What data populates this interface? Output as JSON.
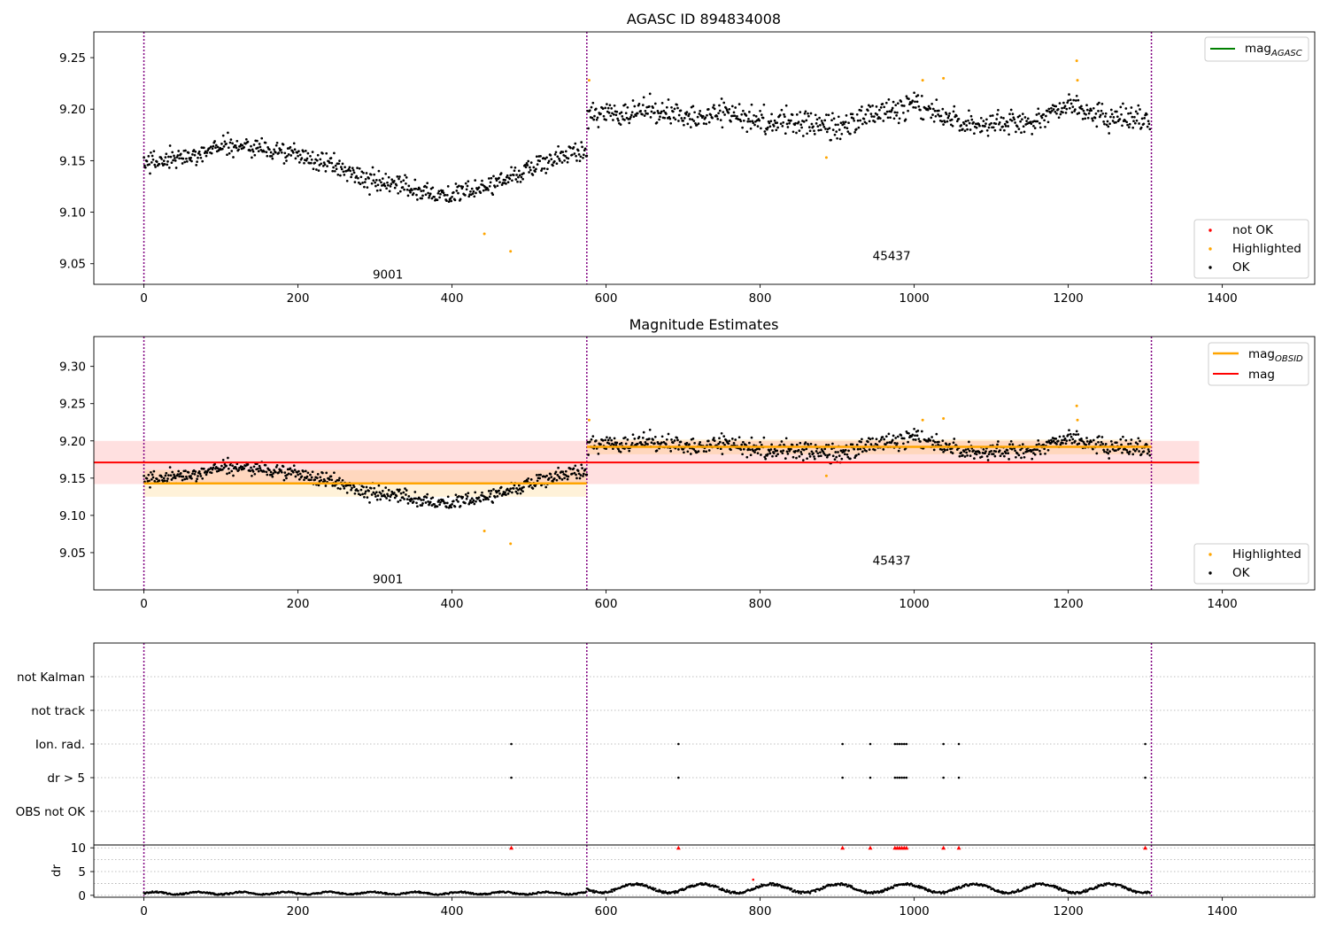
{
  "chart_data": [
    {
      "panel": "top",
      "type": "scatter",
      "title": "AGASC ID 894834008",
      "xlim": [
        -65,
        1520
      ],
      "ylim": [
        9.03,
        9.275
      ],
      "xticks": [
        0,
        200,
        400,
        600,
        800,
        1000,
        1200,
        1400
      ],
      "yticks": [
        9.05,
        9.1,
        9.15,
        9.2,
        9.25
      ],
      "obs_boundaries": [
        0,
        575,
        1308
      ],
      "obs_labels": [
        {
          "text": "9001",
          "x": 288,
          "y": 9.04
        },
        {
          "text": "45437",
          "x": 942,
          "y": 9.058
        }
      ],
      "legend_upper": [
        {
          "label": "mag",
          "subscript": "AGASC",
          "color": "#008000"
        }
      ],
      "legend_lower": [
        {
          "label": "not OK",
          "color": "#ff0000"
        },
        {
          "label": "Highlighted",
          "color": "#ffa500"
        },
        {
          "label": "OK",
          "color": "#000000"
        }
      ],
      "ok_trend": {
        "x": [
          0,
          50,
          100,
          150,
          200,
          250,
          300,
          350,
          400,
          450,
          500,
          550,
          575,
          576,
          650,
          700,
          750,
          800,
          850,
          900,
          950,
          1000,
          1050,
          1100,
          1150,
          1200,
          1250,
          1308
        ],
        "y": [
          9.148,
          9.152,
          9.165,
          9.163,
          9.155,
          9.145,
          9.128,
          9.123,
          9.116,
          9.126,
          9.143,
          9.156,
          9.16,
          9.196,
          9.198,
          9.194,
          9.197,
          9.19,
          9.188,
          9.18,
          9.196,
          9.205,
          9.19,
          9.184,
          9.186,
          9.204,
          9.192,
          9.188
        ]
      },
      "highlighted_points": [
        {
          "x": 442,
          "y": 9.079
        },
        {
          "x": 476,
          "y": 9.062
        },
        {
          "x": 578,
          "y": 9.228
        },
        {
          "x": 886,
          "y": 9.153
        },
        {
          "x": 1011,
          "y": 9.228
        },
        {
          "x": 1038,
          "y": 9.23
        },
        {
          "x": 1211,
          "y": 9.247
        },
        {
          "x": 1212,
          "y": 9.228
        }
      ]
    },
    {
      "panel": "middle",
      "type": "scatter",
      "title": "Magnitude Estimates",
      "xlim": [
        -65,
        1520
      ],
      "ylim": [
        9.0,
        9.34
      ],
      "xticks": [
        0,
        200,
        400,
        600,
        800,
        1000,
        1200,
        1400
      ],
      "yticks": [
        9.05,
        9.1,
        9.15,
        9.2,
        9.25,
        9.3
      ],
      "obs_labels": [
        {
          "text": "9001",
          "x": 288,
          "y": 9.015
        },
        {
          "text": "45437",
          "x": 942,
          "y": 9.04
        }
      ],
      "mag": {
        "value": 9.171,
        "band": [
          9.142,
          9.2
        ],
        "x": [
          -65,
          1370
        ],
        "color": "#ff0000"
      },
      "mag_obsid": [
        {
          "x": [
            0,
            575
          ],
          "value": 9.143,
          "band": [
            9.125,
            9.161
          ]
        },
        {
          "x": [
            575,
            1308
          ],
          "value": 9.192,
          "band": [
            9.182,
            9.202
          ]
        }
      ],
      "legend_upper": [
        {
          "label": "mag",
          "subscript": "OBSID",
          "color": "#ffa500"
        },
        {
          "label": "mag",
          "color": "#ff0000"
        }
      ],
      "legend_lower": [
        {
          "label": "Highlighted",
          "color": "#ffa500"
        },
        {
          "label": "OK",
          "color": "#000000"
        }
      ]
    },
    {
      "panel": "flags",
      "type": "scatter",
      "categories": [
        "OBS not OK",
        "dr > 5",
        "Ion. rad.",
        "not track",
        "not Kalman"
      ],
      "flagged_x": [
        477,
        694,
        907,
        943,
        975,
        978,
        981,
        984,
        987,
        990,
        1038,
        1058,
        1300
      ],
      "flags_set": [
        "dr > 5",
        "Ion. rad."
      ]
    },
    {
      "panel": "dr",
      "type": "scatter",
      "ylabel": "dr",
      "ylim": [
        -0.4,
        10.6
      ],
      "yticks": [
        0,
        5,
        10
      ],
      "xticks": [
        0,
        200,
        400,
        600,
        800,
        1000,
        1200,
        1400
      ],
      "clipped_x": [
        477,
        694,
        907,
        943,
        975,
        978,
        981,
        984,
        987,
        990,
        1038,
        1058,
        1300
      ],
      "outlier": {
        "x": 791,
        "y": 3.3
      }
    }
  ]
}
